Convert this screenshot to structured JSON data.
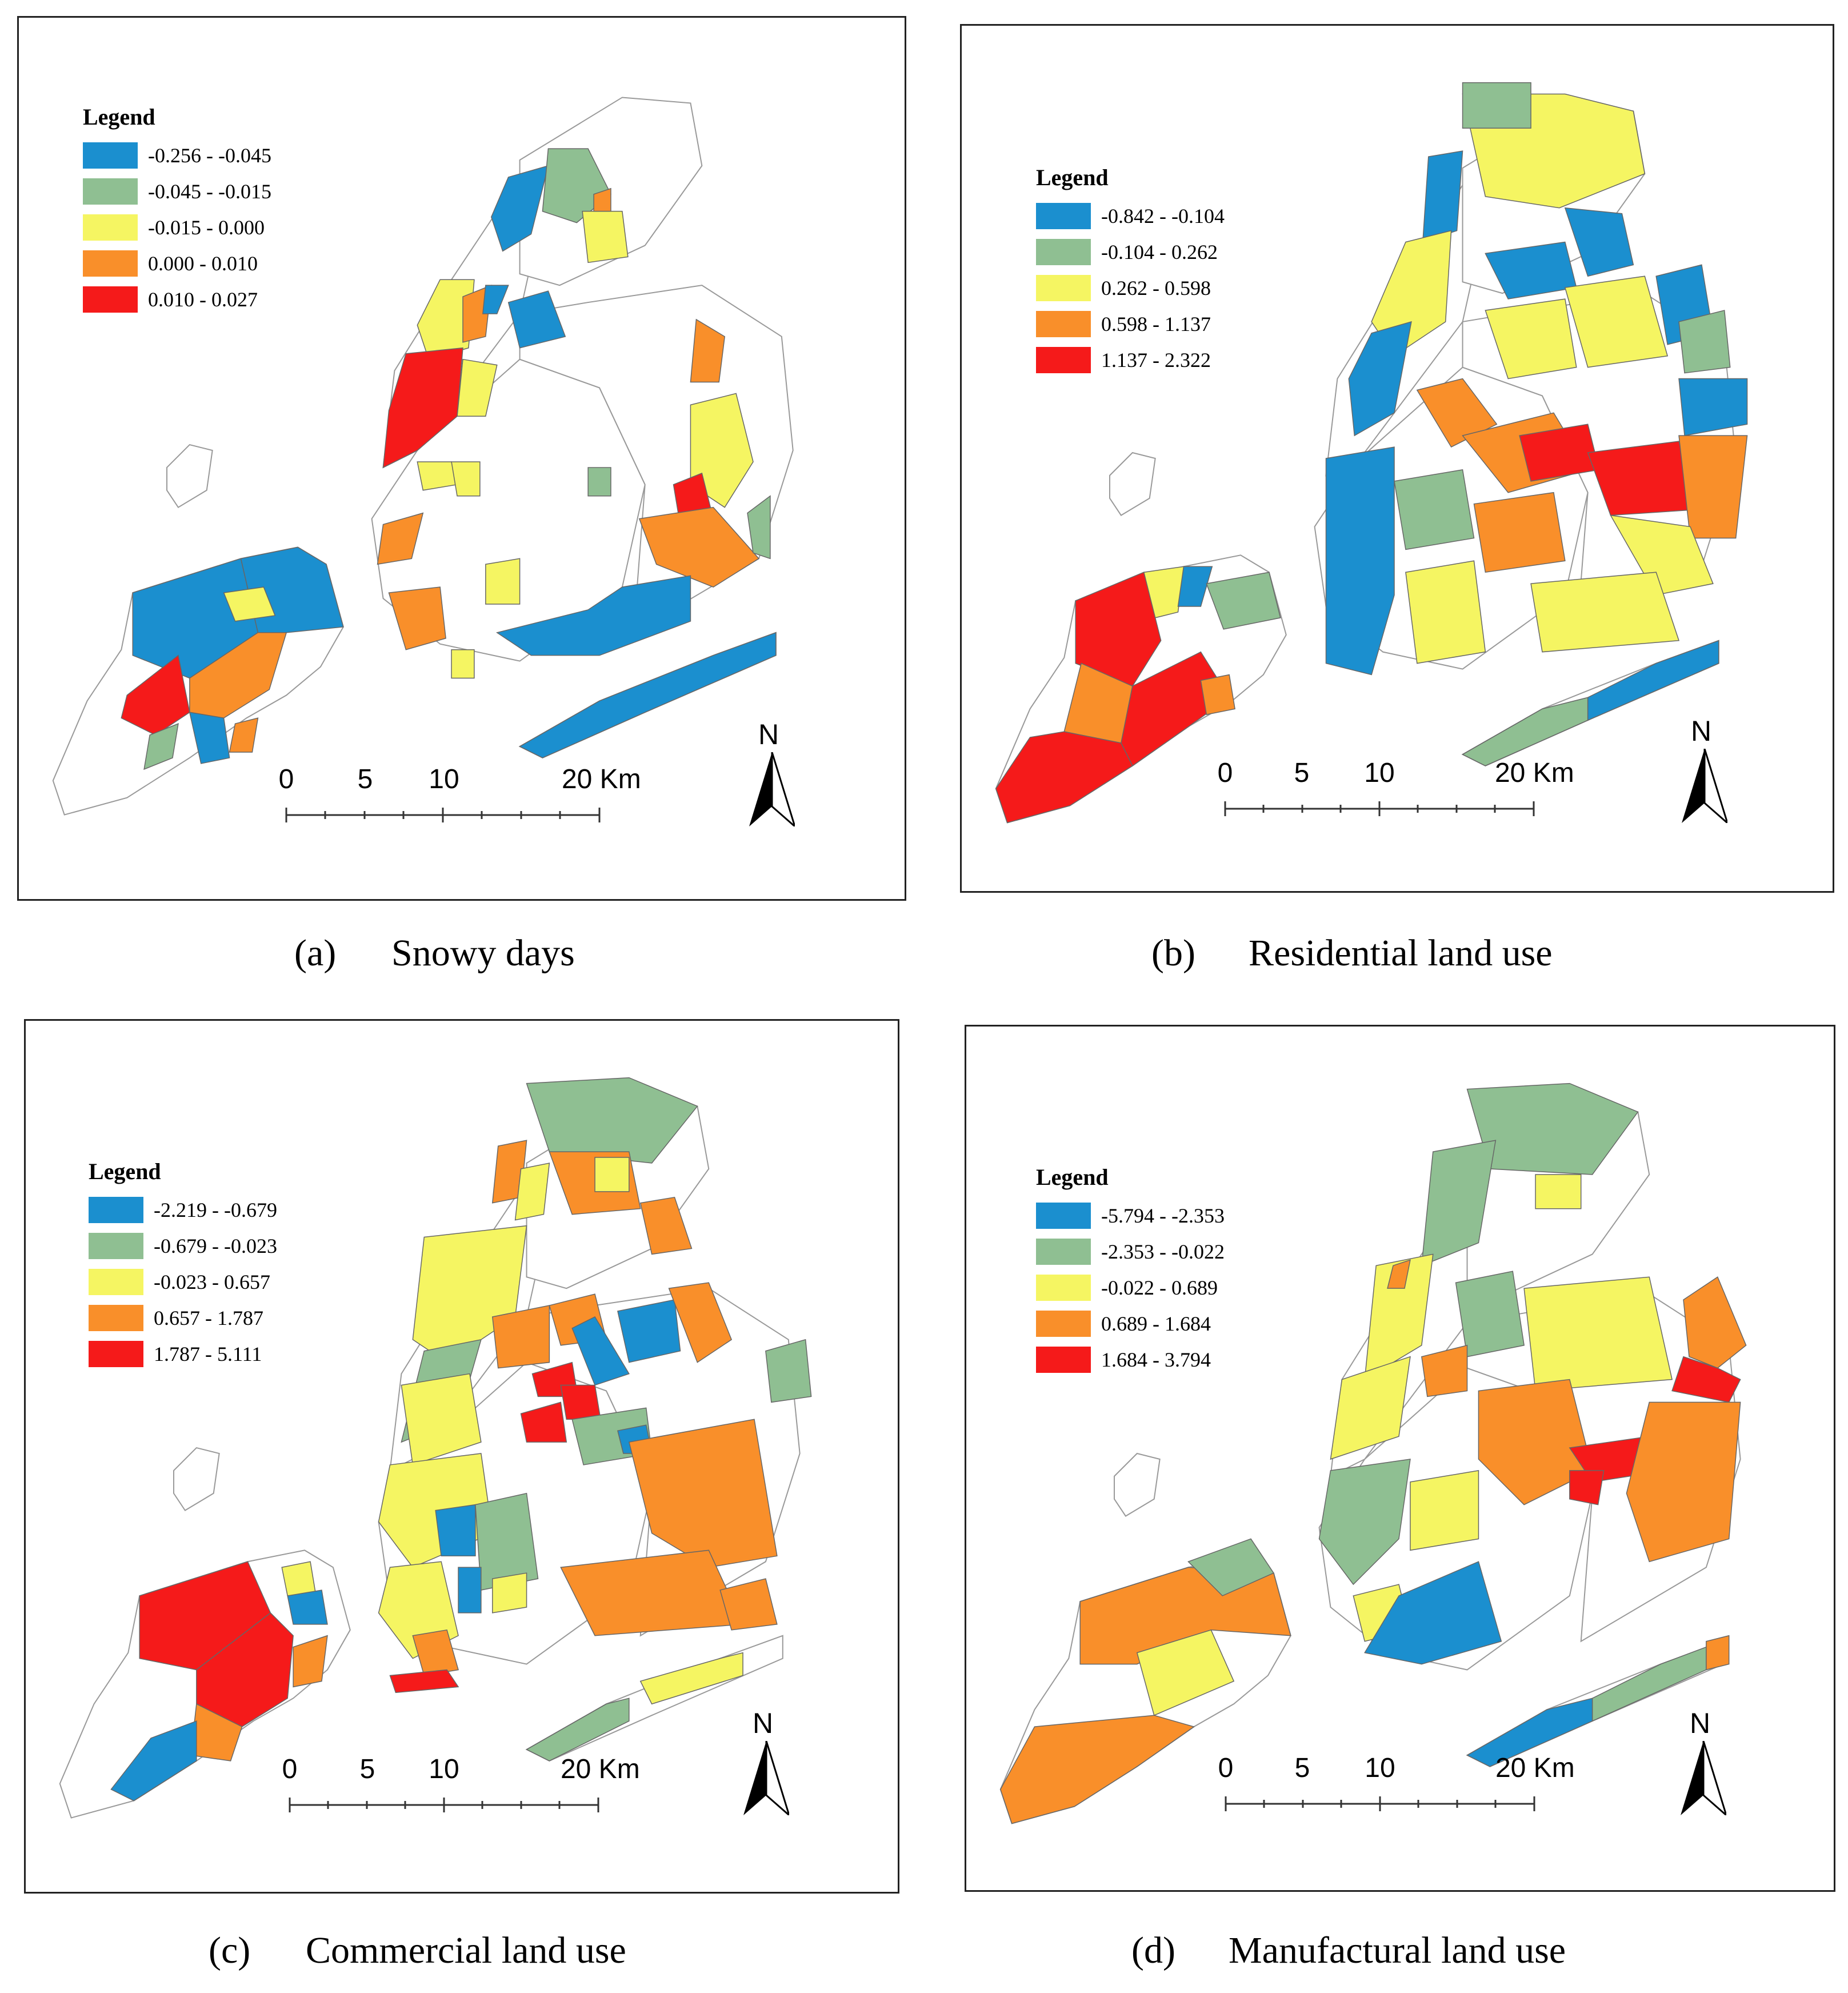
{
  "scale_bar": {
    "labels": [
      "0",
      "5",
      "10",
      "20 Km"
    ]
  },
  "north_arrow": {
    "label": "N"
  },
  "colors": {
    "class1": "#1b8fcf",
    "class2": "#8fbf92",
    "class3": "#f5f562",
    "class4": "#f98f2a",
    "class5": "#f51a1a"
  },
  "panels": [
    {
      "caption_tag": "(a)",
      "caption": "Snowy days",
      "legend_title": "Legend",
      "legend": [
        "-0.256 - -0.045",
        "-0.045 - -0.015",
        "-0.015 - 0.000",
        "0.000 - 0.010",
        "0.010 - 0.027"
      ]
    },
    {
      "caption_tag": "(b)",
      "caption": "Residential land use",
      "legend_title": "Legend",
      "legend": [
        "-0.842 - -0.104",
        "-0.104 - 0.262",
        "0.262 - 0.598",
        "0.598 - 1.137",
        "1.137 - 2.322"
      ]
    },
    {
      "caption_tag": "(c)",
      "caption": "Commercial land use",
      "legend_title": "Legend",
      "legend": [
        "-2.219 - -0.679",
        "-0.679 - -0.023",
        "-0.023 - 0.657",
        "0.657 - 1.787",
        "1.787 - 5.111"
      ]
    },
    {
      "caption_tag": "(d)",
      "caption": "Manufactural land use",
      "legend_title": "Legend",
      "legend": [
        "-5.794 - -2.353",
        "-2.353 - -0.022",
        "-0.022 - 0.689",
        "0.689 - 1.684",
        "1.684 - 3.794"
      ]
    }
  ]
}
